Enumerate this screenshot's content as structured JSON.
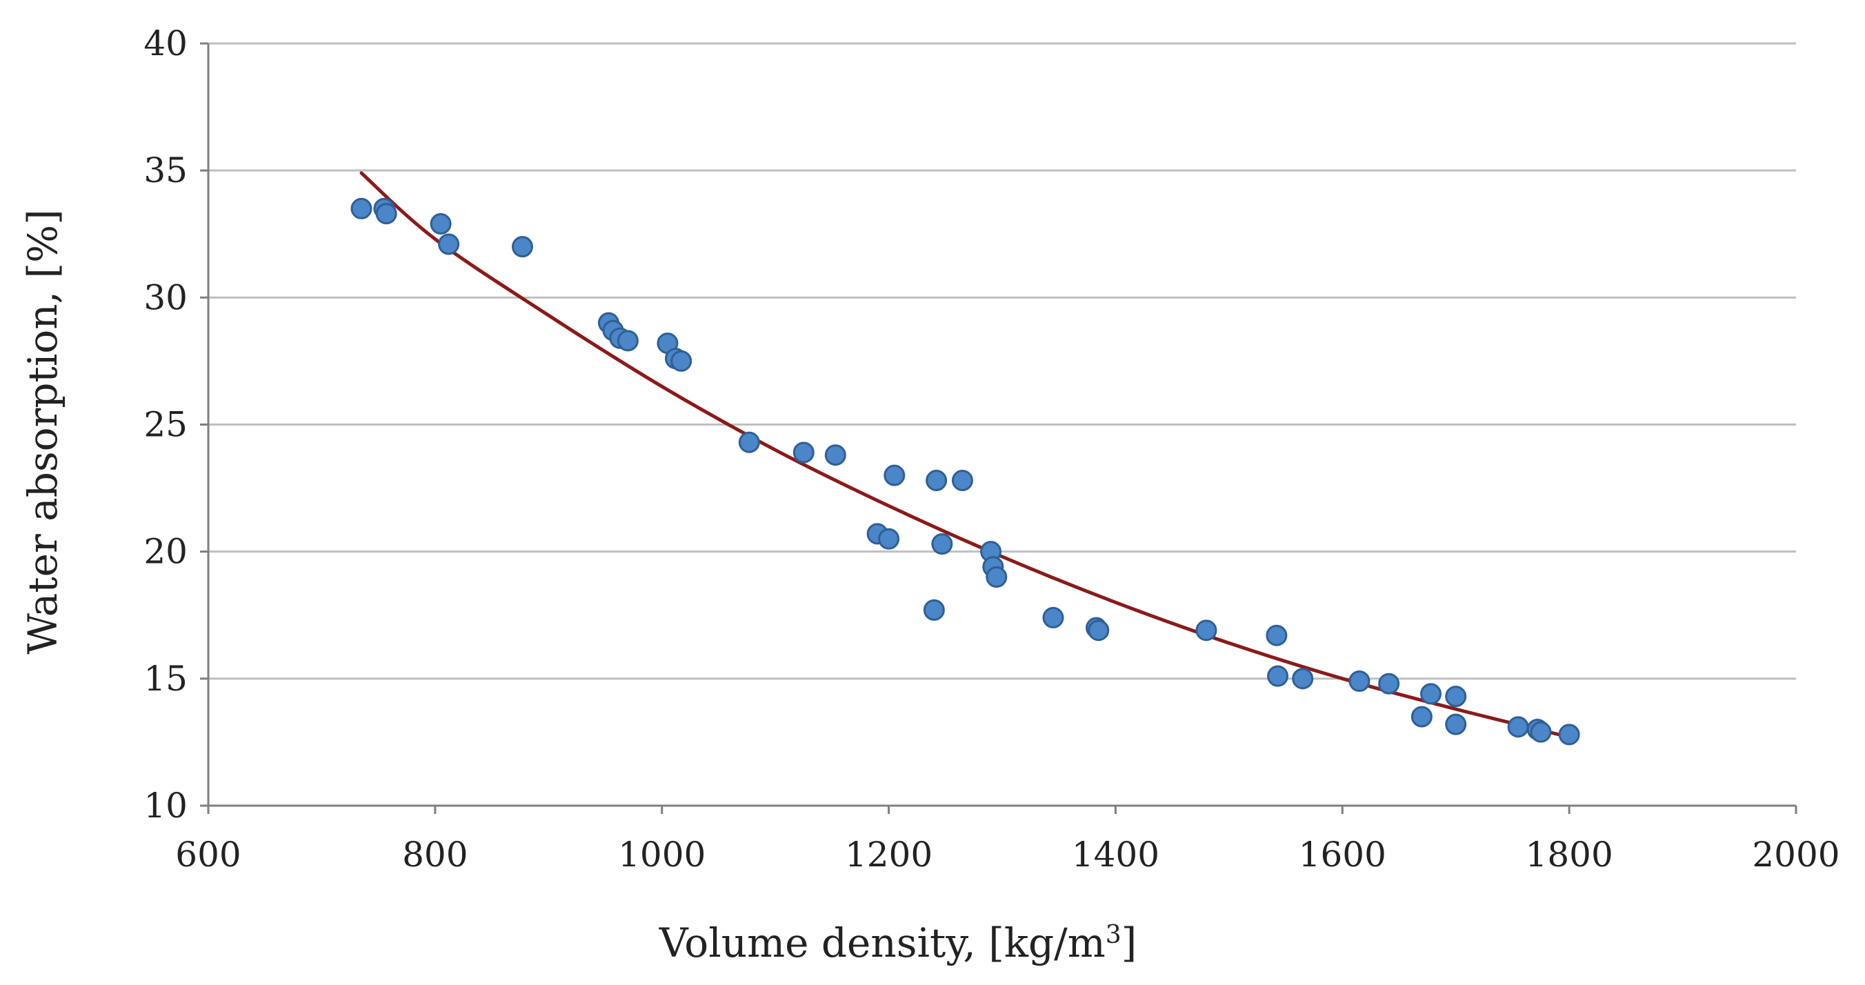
{
  "colors": {
    "background": "#ffffff",
    "gridline": "#bfbfbf",
    "axis": "#7f7f7f",
    "marker_fill": "#4a86c8",
    "marker_stroke": "#2e5f96",
    "trendline": "#8b1a1a"
  },
  "chart_data": {
    "type": "scatter",
    "title": "",
    "xlabel": "Volume density, [kg/m",
    "xlabel_sup": "3",
    "xlabel_end": "]",
    "ylabel": "Water absorption, [%]",
    "xlim": [
      600,
      2000
    ],
    "ylim": [
      10,
      40
    ],
    "xticks": [
      600,
      800,
      1000,
      1200,
      1400,
      1600,
      1800,
      2000
    ],
    "yticks": [
      10,
      15,
      20,
      25,
      30,
      35,
      40
    ],
    "grid": "horizontal",
    "legend": "none",
    "points": [
      [
        735,
        33.5
      ],
      [
        755,
        33.5
      ],
      [
        757,
        33.3
      ],
      [
        805,
        32.9
      ],
      [
        812,
        32.1
      ],
      [
        877,
        32.0
      ],
      [
        953,
        29.0
      ],
      [
        957,
        28.7
      ],
      [
        963,
        28.4
      ],
      [
        970,
        28.3
      ],
      [
        1005,
        28.2
      ],
      [
        1012,
        27.6
      ],
      [
        1017,
        27.5
      ],
      [
        1077,
        24.3
      ],
      [
        1125,
        23.9
      ],
      [
        1153,
        23.8
      ],
      [
        1190,
        20.7
      ],
      [
        1200,
        20.5
      ],
      [
        1205,
        23.0
      ],
      [
        1240,
        17.7
      ],
      [
        1242,
        22.8
      ],
      [
        1247,
        20.3
      ],
      [
        1265,
        22.8
      ],
      [
        1290,
        20.0
      ],
      [
        1292,
        19.4
      ],
      [
        1295,
        19.0
      ],
      [
        1345,
        17.4
      ],
      [
        1383,
        17.0
      ],
      [
        1385,
        16.9
      ],
      [
        1480,
        16.9
      ],
      [
        1542,
        16.7
      ],
      [
        1543,
        15.1
      ],
      [
        1565,
        15.0
      ],
      [
        1615,
        14.9
      ],
      [
        1641,
        14.8
      ],
      [
        1670,
        13.5
      ],
      [
        1678,
        14.4
      ],
      [
        1700,
        14.3
      ],
      [
        1700,
        13.2
      ],
      [
        1755,
        13.1
      ],
      [
        1772,
        13.0
      ],
      [
        1775,
        12.9
      ],
      [
        1800,
        12.8
      ]
    ],
    "trendline": {
      "type": "polynomial",
      "x": [
        735,
        800,
        900,
        1000,
        1100,
        1200,
        1300,
        1400,
        1500,
        1600,
        1700,
        1800
      ],
      "y": [
        34.9,
        32.3,
        29.3,
        26.5,
        24.0,
        21.8,
        19.8,
        18.0,
        16.4,
        15.0,
        13.8,
        12.7
      ]
    }
  }
}
